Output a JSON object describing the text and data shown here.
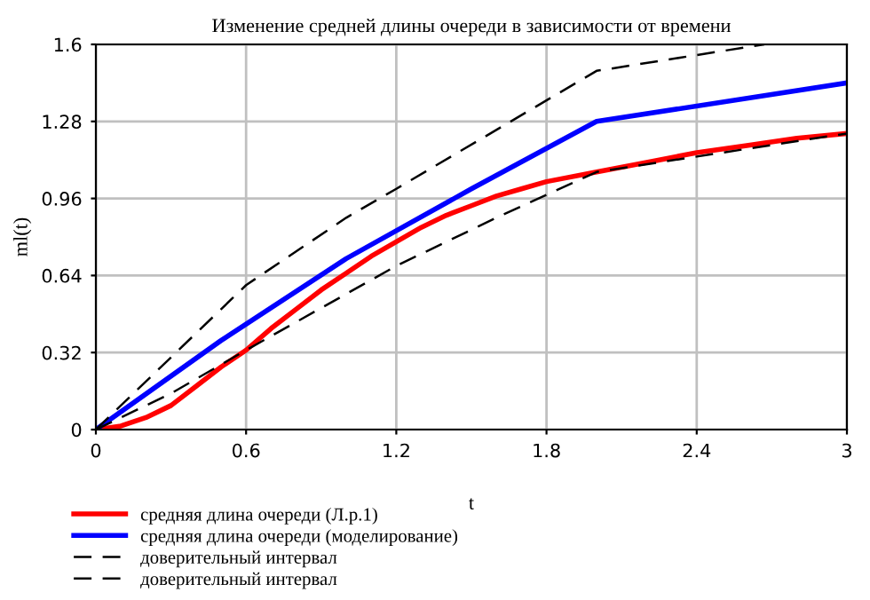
{
  "chart_data": {
    "type": "line",
    "title": "Изменение средней длины очереди в зависимости от времени",
    "xlabel": "t",
    "ylabel": "ml(t)",
    "xlim": [
      0,
      3
    ],
    "ylim": [
      0,
      1.6
    ],
    "xticks": [
      0,
      0.6,
      1.2,
      1.8,
      2.4,
      3
    ],
    "yticks": [
      0,
      0.32,
      0.64,
      0.96,
      1.28,
      1.6
    ],
    "grid": true,
    "legend": "bottom",
    "series": [
      {
        "name": "средняя длина очереди (Л.р.1)",
        "color": "#ff0000",
        "line_style": "solid",
        "x": [
          0,
          0.1,
          0.2,
          0.3,
          0.4,
          0.5,
          0.6,
          0.7,
          0.8,
          0.9,
          1.0,
          1.1,
          1.2,
          1.3,
          1.4,
          1.5,
          1.6,
          1.7,
          1.8,
          2.0,
          2.2,
          2.4,
          2.6,
          2.8,
          3.0
        ],
        "values": [
          0,
          0.015,
          0.05,
          0.1,
          0.18,
          0.26,
          0.33,
          0.42,
          0.5,
          0.58,
          0.65,
          0.72,
          0.78,
          0.84,
          0.89,
          0.93,
          0.97,
          1.0,
          1.03,
          1.07,
          1.11,
          1.15,
          1.18,
          1.21,
          1.23
        ]
      },
      {
        "name": "средняя длина очереди (моделирование)",
        "color": "#0000ff",
        "line_style": "solid",
        "x": [
          0,
          0.5,
          1.0,
          1.5,
          2.0,
          3.0
        ],
        "values": [
          0,
          0.37,
          0.71,
          1.0,
          1.28,
          1.44
        ]
      },
      {
        "name": "доверительный интервал",
        "color": "#000000",
        "line_style": "dashed",
        "x": [
          0,
          0.6,
          1.0,
          1.2,
          2.0,
          2.67
        ],
        "values": [
          0,
          0.6,
          0.88,
          1.0,
          1.49,
          1.6
        ]
      },
      {
        "name": "доверительный интервал",
        "color": "#000000",
        "line_style": "dashed",
        "x": [
          0,
          0.3,
          0.6,
          1.2,
          1.6,
          2.0,
          2.5,
          3.0
        ],
        "values": [
          0,
          0.15,
          0.33,
          0.68,
          0.88,
          1.07,
          1.15,
          1.23
        ]
      }
    ]
  }
}
